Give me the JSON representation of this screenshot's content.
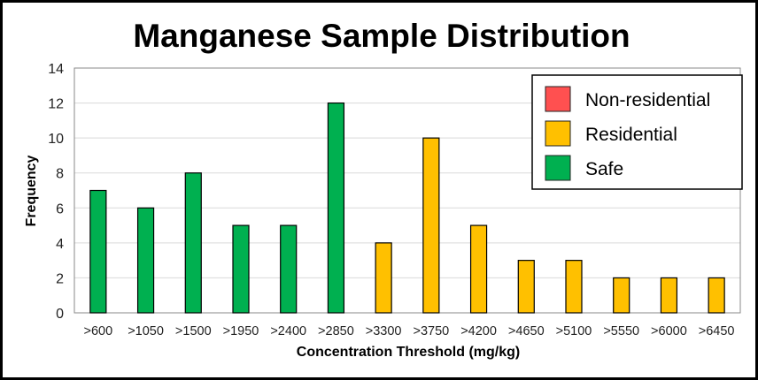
{
  "chart_data": {
    "type": "bar",
    "title": "Manganese Sample Distribution",
    "xlabel": "Concentration Threshold (mg/kg)",
    "ylabel": "Frequency",
    "ylim": [
      0,
      14
    ],
    "yticks": [
      0,
      2,
      4,
      6,
      8,
      10,
      12,
      14
    ],
    "grid": true,
    "legend_position": "top-right",
    "categories": [
      ">600",
      ">1050",
      ">1500",
      ">1950",
      ">2400",
      ">2850",
      ">3300",
      ">3750",
      ">4200",
      ">4650",
      ">5100",
      ">5550",
      ">6000",
      ">6450"
    ],
    "values": [
      7,
      6,
      8,
      5,
      5,
      12,
      4,
      10,
      5,
      3,
      3,
      2,
      2,
      2
    ],
    "bar_class": [
      "Safe",
      "Safe",
      "Safe",
      "Safe",
      "Safe",
      "Safe",
      "Residential",
      "Residential",
      "Residential",
      "Residential",
      "Residential",
      "Residential",
      "Residential",
      "Residential"
    ],
    "legend": [
      {
        "label": "Non-residential",
        "color": "#FF5050"
      },
      {
        "label": "Residential",
        "color": "#FFC000"
      },
      {
        "label": "Safe",
        "color": "#00B050"
      }
    ]
  }
}
